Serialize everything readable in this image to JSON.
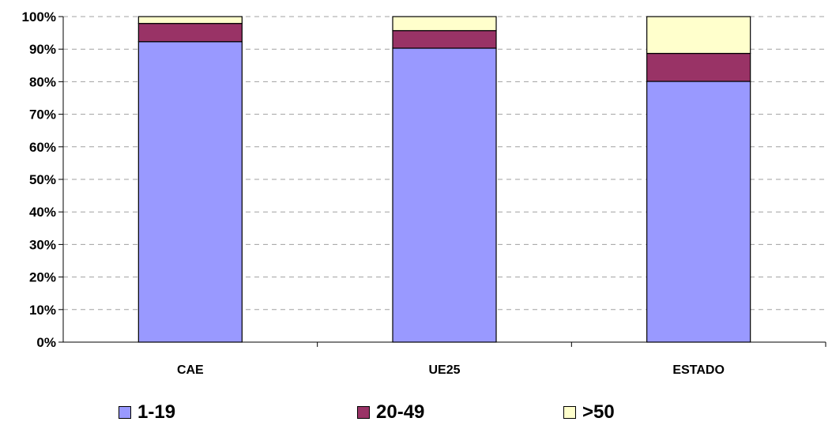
{
  "chart_data": {
    "type": "bar",
    "stacked": true,
    "categories": [
      "CAE",
      "UE25",
      "ESTADO"
    ],
    "series": [
      {
        "name": "1-19",
        "color": "#9999ff",
        "values": [
          92.3,
          90.3,
          80.1
        ]
      },
      {
        "name": "20-49",
        "color": "#993366",
        "values": [
          5.6,
          5.4,
          8.6
        ]
      },
      {
        "name": ">50",
        "color": "#ffffcc",
        "values": [
          2.1,
          4.3,
          11.3
        ]
      }
    ],
    "y_ticks": [
      "0%",
      "10%",
      "20%",
      "30%",
      "40%",
      "50%",
      "60%",
      "70%",
      "80%",
      "90%",
      "100%"
    ],
    "ylim": [
      0,
      100
    ],
    "grid": "dashed horizontal",
    "legend_position": "bottom"
  }
}
